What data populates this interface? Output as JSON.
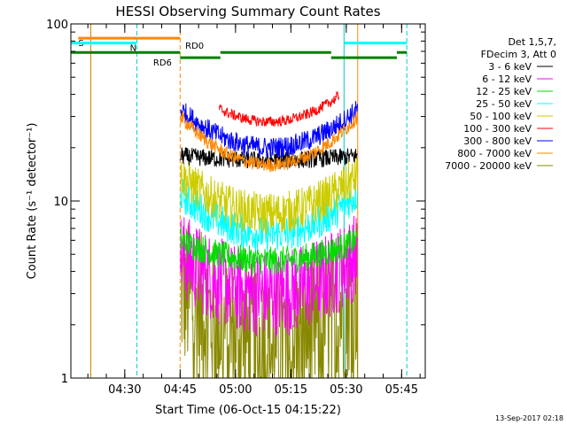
{
  "chart_data": {
    "type": "line",
    "title": "HESSI Observing Summary Count Rates",
    "xlabel": "Start Time (06-Oct-15 04:15:22)",
    "ylabel": "Count Rate (s⁻¹ detector⁻¹)",
    "yscale": "log",
    "ylim": [
      1,
      100
    ],
    "xlim_minutes": [
      0,
      96
    ],
    "x_ticks": [
      {
        "t": 14.6,
        "label": "04:30"
      },
      {
        "t": 29.6,
        "label": "04:45"
      },
      {
        "t": 44.6,
        "label": "05:00"
      },
      {
        "t": 59.6,
        "label": "05:15"
      },
      {
        "t": 74.6,
        "label": "05:30"
      },
      {
        "t": 89.6,
        "label": "05:45"
      }
    ],
    "y_ticks": [
      {
        "v": 1,
        "label": "1"
      },
      {
        "v": 10,
        "label": "10"
      },
      {
        "v": 100,
        "label": "100"
      }
    ],
    "legend_header": [
      "Det 1,5,7,",
      "FDecim 3, Att 0"
    ],
    "legend_placement": "right",
    "series": [
      {
        "name": "3 - 6 keV",
        "color": "#000000",
        "edge": 18,
        "mid": 17,
        "noise": 0.05
      },
      {
        "name": "6 - 12 keV",
        "color": "#ff00ff",
        "edge": 5.0,
        "mid": 3.0,
        "noise": 0.25
      },
      {
        "name": "12 - 25 keV",
        "color": "#00dd00",
        "edge": 6.0,
        "mid": 4.6,
        "noise": 0.08
      },
      {
        "name": "25 - 50 keV",
        "color": "#00ffff",
        "edge": 11.0,
        "mid": 6.5,
        "noise": 0.1
      },
      {
        "name": "50 - 100 keV",
        "color": "#cccc00",
        "edge": 14.0,
        "mid": 8.5,
        "noise": 0.12
      },
      {
        "name": "100 - 300 keV",
        "color": "#ff0000",
        "edge": 48,
        "mid": 28,
        "noise": 0.03
      },
      {
        "name": "300 - 800 keV",
        "color": "#0000ff",
        "edge": 33,
        "mid": 20,
        "noise": 0.06
      },
      {
        "name": "800 - 7000 keV",
        "color": "#ff8800",
        "edge": 30,
        "mid": 16,
        "noise": 0.04
      },
      {
        "name": "7000 - 20000 keV",
        "color": "#888800",
        "edge": 3.2,
        "mid": 1.6,
        "noise": 0.45
      }
    ],
    "segments": [
      {
        "t0": 29.7,
        "t1": 40.2,
        "series": [
          0,
          1,
          2,
          3,
          4,
          6,
          7,
          8
        ]
      },
      {
        "t0": 40.2,
        "t1": 72.6,
        "series": [
          0,
          1,
          2,
          3,
          4,
          5,
          6,
          7,
          8
        ]
      },
      {
        "t0": 72.6,
        "t1": 77.7,
        "series": [
          0,
          1,
          2,
          3,
          4,
          6,
          7,
          8
        ]
      }
    ],
    "vlines": [
      {
        "t": 5.4,
        "color": "#cc8800",
        "dash": false
      },
      {
        "t": 17.9,
        "color": "#00cccc",
        "dash": true
      },
      {
        "t": 29.6,
        "color": "#ff8800",
        "dash": true
      },
      {
        "t": 74.0,
        "color": "#00cccc",
        "dash": false
      },
      {
        "t": 77.7,
        "color": "#ff8800",
        "dash": false
      },
      {
        "t": 91.0,
        "color": "#00cccc",
        "dash": true
      }
    ],
    "flags": [
      {
        "label": "S",
        "color": "#ff8800",
        "y": 83,
        "spans": [
          [
            2.0,
            29.6
          ]
        ],
        "label_t": 2.0
      },
      {
        "label": "N",
        "color": "#00ffff",
        "y": 78,
        "spans": [
          [
            0.0,
            17.9
          ],
          [
            74.0,
            91.0
          ]
        ],
        "label_t": 16.0
      },
      {
        "label": "RD0",
        "color": "#008000",
        "y": 69,
        "spans": [
          [
            0.0,
            29.6
          ],
          [
            40.5,
            70.5
          ],
          [
            88.3,
            91.0
          ]
        ],
        "label_t": 31.0
      },
      {
        "label": "RD6",
        "color": "#008000",
        "y": 64.5,
        "spans": [
          [
            29.6,
            40.5
          ],
          [
            70.5,
            88.3
          ]
        ],
        "label_t": 22.3
      }
    ],
    "footer": "13-Sep-2017 02:18"
  }
}
